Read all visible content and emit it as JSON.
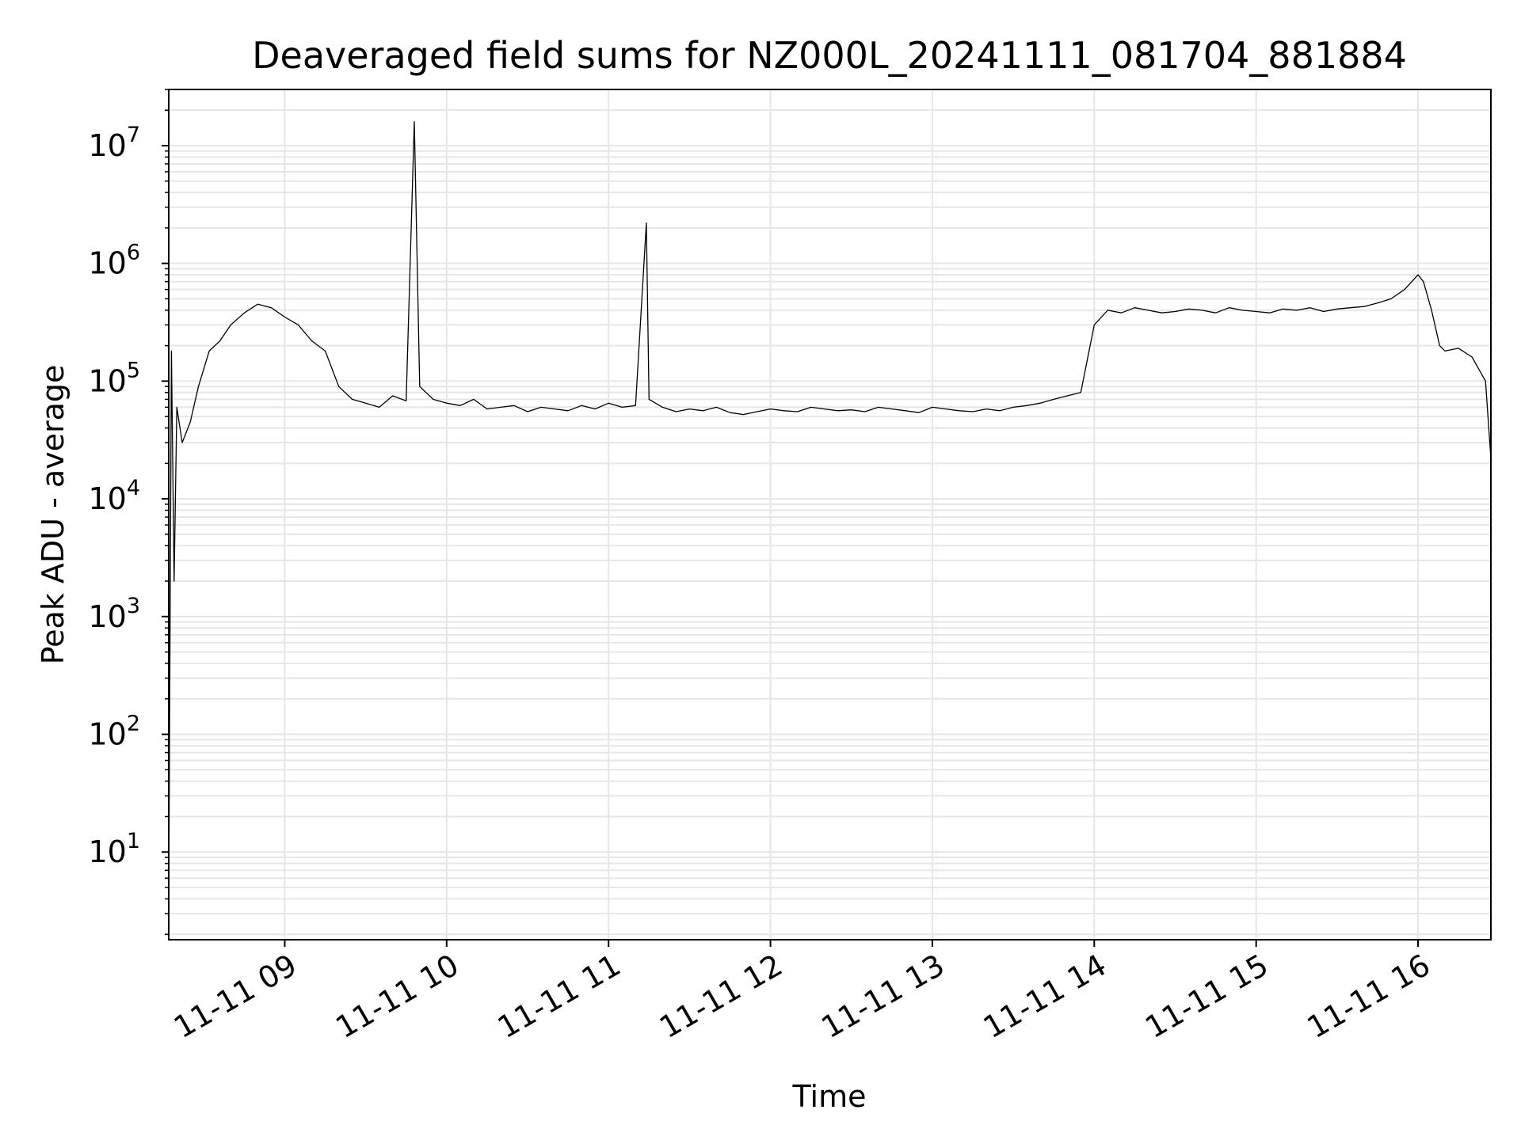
{
  "chart_data": {
    "type": "line",
    "title": "Deaveraged field sums for NZ000L_20241111_081704_881884",
    "xlabel": "Time",
    "ylabel": "Peak ADU - average",
    "y_scale": "log",
    "ylim": [
      1.8,
      30000000.0
    ],
    "xlim": [
      "2024-11-11 08:17",
      "2024-11-11 16:27"
    ],
    "x_ticks": [
      {
        "t": "2024-11-11 09:00",
        "label": "11-11 09"
      },
      {
        "t": "2024-11-11 10:00",
        "label": "11-11 10"
      },
      {
        "t": "2024-11-11 11:00",
        "label": "11-11 11"
      },
      {
        "t": "2024-11-11 12:00",
        "label": "11-11 12"
      },
      {
        "t": "2024-11-11 13:00",
        "label": "11-11 13"
      },
      {
        "t": "2024-11-11 14:00",
        "label": "11-11 14"
      },
      {
        "t": "2024-11-11 15:00",
        "label": "11-11 15"
      },
      {
        "t": "2024-11-11 16:00",
        "label": "11-11 16"
      }
    ],
    "y_ticks": [
      {
        "value": 10,
        "base": "10",
        "exp": "1"
      },
      {
        "value": 100,
        "base": "10",
        "exp": "2"
      },
      {
        "value": 1000,
        "base": "10",
        "exp": "3"
      },
      {
        "value": 10000,
        "base": "10",
        "exp": "4"
      },
      {
        "value": 100000,
        "base": "10",
        "exp": "5"
      },
      {
        "value": 1000000,
        "base": "10",
        "exp": "6"
      },
      {
        "value": 10000000,
        "base": "10",
        "exp": "7"
      }
    ],
    "grid": true,
    "line_color": "#000000",
    "series": [
      {
        "x": [
          "2024-11-11 08:17",
          "2024-11-11 08:18",
          "2024-11-11 08:19",
          "2024-11-11 08:20",
          "2024-11-11 08:22",
          "2024-11-11 08:25",
          "2024-11-11 08:28",
          "2024-11-11 08:32",
          "2024-11-11 08:36",
          "2024-11-11 08:40",
          "2024-11-11 08:45",
          "2024-11-11 08:50",
          "2024-11-11 08:55",
          "2024-11-11 09:00",
          "2024-11-11 09:05",
          "2024-11-11 09:10",
          "2024-11-11 09:15",
          "2024-11-11 09:20",
          "2024-11-11 09:25",
          "2024-11-11 09:30",
          "2024-11-11 09:35",
          "2024-11-11 09:40",
          "2024-11-11 09:45",
          "2024-11-11 09:48",
          "2024-11-11 09:50",
          "2024-11-11 09:55",
          "2024-11-11 10:00",
          "2024-11-11 10:05",
          "2024-11-11 10:10",
          "2024-11-11 10:15",
          "2024-11-11 10:20",
          "2024-11-11 10:25",
          "2024-11-11 10:30",
          "2024-11-11 10:35",
          "2024-11-11 10:40",
          "2024-11-11 10:45",
          "2024-11-11 10:50",
          "2024-11-11 10:55",
          "2024-11-11 11:00",
          "2024-11-11 11:05",
          "2024-11-11 11:10",
          "2024-11-11 11:14",
          "2024-11-11 11:15",
          "2024-11-11 11:20",
          "2024-11-11 11:25",
          "2024-11-11 11:30",
          "2024-11-11 11:35",
          "2024-11-11 11:40",
          "2024-11-11 11:45",
          "2024-11-11 11:50",
          "2024-11-11 11:55",
          "2024-11-11 12:00",
          "2024-11-11 12:05",
          "2024-11-11 12:10",
          "2024-11-11 12:15",
          "2024-11-11 12:20",
          "2024-11-11 12:25",
          "2024-11-11 12:30",
          "2024-11-11 12:35",
          "2024-11-11 12:40",
          "2024-11-11 12:45",
          "2024-11-11 12:50",
          "2024-11-11 12:55",
          "2024-11-11 13:00",
          "2024-11-11 13:05",
          "2024-11-11 13:10",
          "2024-11-11 13:15",
          "2024-11-11 13:20",
          "2024-11-11 13:25",
          "2024-11-11 13:30",
          "2024-11-11 13:35",
          "2024-11-11 13:40",
          "2024-11-11 13:45",
          "2024-11-11 13:50",
          "2024-11-11 13:55",
          "2024-11-11 14:00",
          "2024-11-11 14:05",
          "2024-11-11 14:10",
          "2024-11-11 14:15",
          "2024-11-11 14:20",
          "2024-11-11 14:25",
          "2024-11-11 14:30",
          "2024-11-11 14:35",
          "2024-11-11 14:40",
          "2024-11-11 14:45",
          "2024-11-11 14:50",
          "2024-11-11 14:55",
          "2024-11-11 15:00",
          "2024-11-11 15:05",
          "2024-11-11 15:10",
          "2024-11-11 15:15",
          "2024-11-11 15:20",
          "2024-11-11 15:25",
          "2024-11-11 15:30",
          "2024-11-11 15:35",
          "2024-11-11 15:40",
          "2024-11-11 15:45",
          "2024-11-11 15:50",
          "2024-11-11 15:55",
          "2024-11-11 16:00",
          "2024-11-11 16:02",
          "2024-11-11 16:05",
          "2024-11-11 16:08",
          "2024-11-11 16:10",
          "2024-11-11 16:15",
          "2024-11-11 16:20",
          "2024-11-11 16:25",
          "2024-11-11 16:27"
        ],
        "y": [
          3.8,
          180000,
          2000,
          60000,
          30000,
          45000,
          90000,
          180000,
          220000,
          300000,
          380000,
          450000,
          420000,
          350000,
          300000,
          220000,
          180000,
          90000,
          70000,
          65000,
          60000,
          75000,
          68000,
          16000000,
          90000,
          70000,
          65000,
          62000,
          70000,
          58000,
          60000,
          62000,
          55000,
          60000,
          58000,
          56000,
          62000,
          58000,
          65000,
          60000,
          62000,
          2200000,
          70000,
          60000,
          55000,
          58000,
          56000,
          60000,
          54000,
          52000,
          55000,
          58000,
          56000,
          55000,
          60000,
          58000,
          56000,
          57000,
          55000,
          60000,
          58000,
          56000,
          54000,
          60000,
          58000,
          56000,
          55000,
          58000,
          56000,
          60000,
          62000,
          65000,
          70000,
          75000,
          80000,
          300000,
          400000,
          380000,
          420000,
          400000,
          380000,
          390000,
          410000,
          400000,
          380000,
          420000,
          400000,
          390000,
          380000,
          410000,
          400000,
          420000,
          390000,
          410000,
          420000,
          430000,
          460000,
          500000,
          600000,
          800000,
          700000,
          400000,
          200000,
          180000,
          190000,
          160000,
          100000,
          22000
        ]
      }
    ]
  }
}
